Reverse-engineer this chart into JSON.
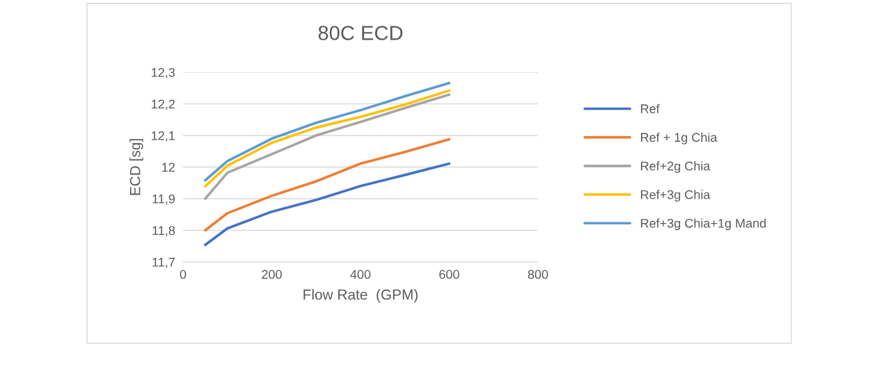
{
  "chart_data": {
    "type": "line",
    "title": "80C ECD",
    "xlabel": "Flow Rate  (GPM)",
    "ylabel": "ECD [sg]",
    "x": [
      50,
      100,
      200,
      300,
      400,
      500,
      600
    ],
    "series": [
      {
        "name": "Ref",
        "color": "#4472c4",
        "values": [
          11.754,
          11.806,
          11.859,
          11.896,
          11.94,
          11.975,
          12.011
        ]
      },
      {
        "name": "Ref + 1g Chia",
        "color": "#ed7d31",
        "values": [
          11.8,
          11.854,
          11.909,
          11.955,
          12.011,
          12.048,
          12.088
        ]
      },
      {
        "name": "Ref+2g Chia",
        "color": "#a5a5a5",
        "values": [
          11.9,
          11.982,
          12.041,
          12.1,
          12.143,
          12.187,
          12.229
        ]
      },
      {
        "name": "Ref+3g Chia",
        "color": "#ffc000",
        "values": [
          11.939,
          12.004,
          12.077,
          12.125,
          12.159,
          12.198,
          12.242
        ]
      },
      {
        "name": "Ref+3g Chia+1g Mand",
        "color": "#5b9bd5",
        "values": [
          11.958,
          12.019,
          12.09,
          12.14,
          12.18,
          12.224,
          12.266
        ]
      }
    ],
    "xlim": [
      0,
      800
    ],
    "xticks": [
      0,
      200,
      400,
      600,
      800
    ],
    "ylim": [
      11.7,
      12.3
    ],
    "yticks": [
      {
        "value": 11.7,
        "label": "11,7"
      },
      {
        "value": 11.8,
        "label": "11,8"
      },
      {
        "value": 11.9,
        "label": "11,9"
      },
      12,
      {
        "value": 12.1,
        "label": "12,1"
      },
      {
        "value": 12.2,
        "label": "12,2"
      },
      {
        "value": 12.3,
        "label": "12,3"
      }
    ],
    "grid": "y",
    "legend": "right",
    "marker": "none",
    "line_style": "solid"
  }
}
